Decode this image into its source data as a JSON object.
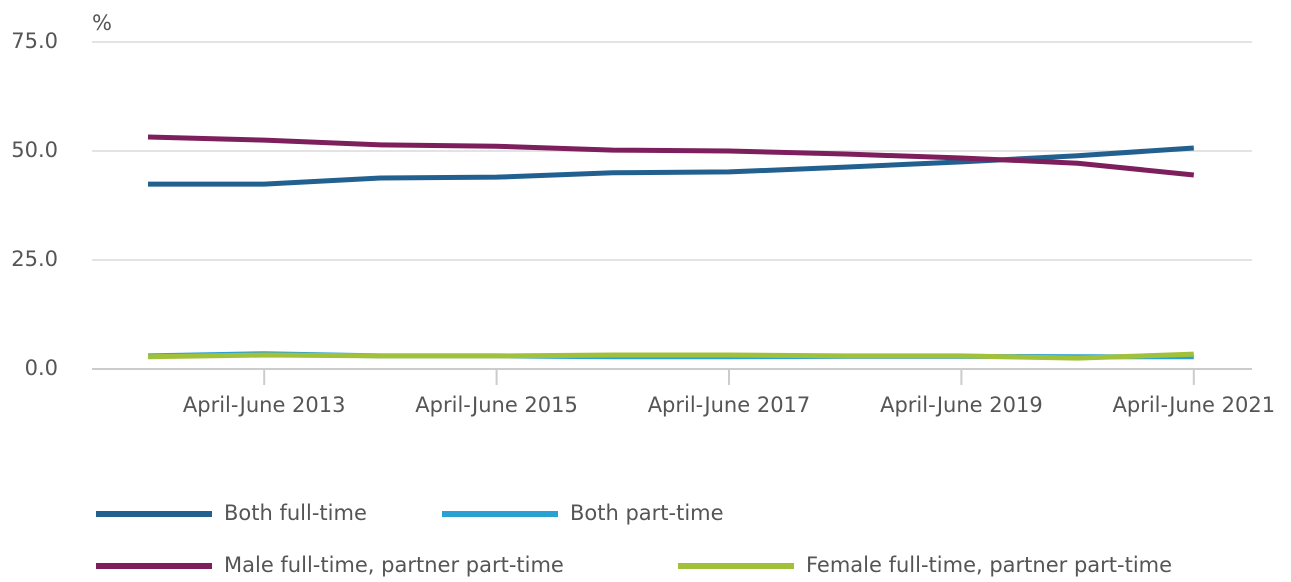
{
  "chart_data": {
    "type": "line",
    "y_label": "%",
    "categories": [
      null,
      "April-June 2013",
      null,
      "April-June 2015",
      null,
      "April-June 2017",
      null,
      "April-June 2019",
      null,
      "April-June 2021"
    ],
    "series": [
      {
        "name": "Both full-time",
        "color": "#22618f",
        "values": [
          42.4,
          42.4,
          43.8,
          44.0,
          45.0,
          45.2,
          46.3,
          47.5,
          48.9,
          50.7
        ]
      },
      {
        "name": "Both part-time",
        "color": "#2aa1d3",
        "values": [
          3.0,
          3.5,
          3.0,
          3.0,
          2.8,
          2.8,
          2.9,
          2.9,
          2.8,
          2.8
        ]
      },
      {
        "name": "Male full-time, partner part-time",
        "color": "#7c1f5c",
        "values": [
          53.2,
          52.5,
          51.4,
          51.1,
          50.2,
          50.0,
          49.3,
          48.4,
          47.2,
          44.5
        ]
      },
      {
        "name": "Female full-time, partner part-time",
        "color": "#a2c13b",
        "values": [
          2.8,
          3.2,
          3.0,
          3.0,
          3.2,
          3.2,
          3.0,
          3.0,
          2.5,
          3.4
        ]
      }
    ],
    "ylim": [
      0,
      75
    ],
    "yticks": [
      {
        "value": 0,
        "label": "0.0"
      },
      {
        "value": 25,
        "label": "25.0"
      },
      {
        "value": 50,
        "label": "50.0"
      },
      {
        "value": 75,
        "label": "75.0"
      }
    ],
    "grid": true
  }
}
